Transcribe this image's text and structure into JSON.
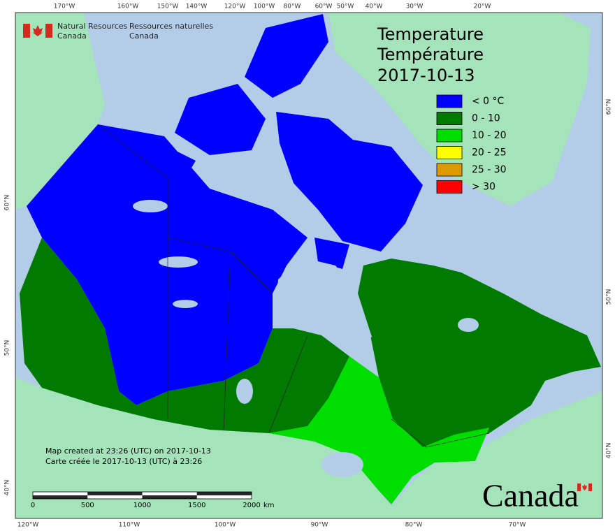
{
  "header": {
    "department_en": [
      "Natural Resources",
      "Canada"
    ],
    "department_fr": [
      "Ressources naturelles",
      "Canada"
    ]
  },
  "title": [
    "Temperature",
    "Température"
  ],
  "date": "2017-10-13",
  "legend": [
    {
      "label": "< 0 °C",
      "color": "#0000ff"
    },
    {
      "label": "0 - 10",
      "color": "#007a00"
    },
    {
      "label": "10 - 20",
      "color": "#00dd00"
    },
    {
      "label": "20 - 25",
      "color": "#ffff00"
    },
    {
      "label": "25 - 30",
      "color": "#dd9900"
    },
    {
      "label": "> 30",
      "color": "#ff0000"
    }
  ],
  "graticule": {
    "top": [
      "170°W",
      "160°W",
      "150°W",
      "140°W",
      "120°W",
      "100°W",
      "80°W",
      "60°W",
      "50°W",
      "40°W",
      "30°W",
      "20°W"
    ],
    "bottom": [
      "120°W",
      "110°W",
      "100°W",
      "90°W",
      "80°W",
      "70°W"
    ],
    "left": [
      "60°N",
      "50°N",
      "40°N"
    ],
    "right": [
      "60°N",
      "50°N",
      "40°N"
    ]
  },
  "notes": [
    "Map created at 23:26 (UTC) on 2017-10-13",
    "Carte créée le 2017-10-13 (UTC) à 23:26"
  ],
  "scale_bar": {
    "labels": [
      "0",
      "500",
      "1000",
      "1500",
      "2000"
    ],
    "unit": "km"
  },
  "wordmark": "Canada"
}
